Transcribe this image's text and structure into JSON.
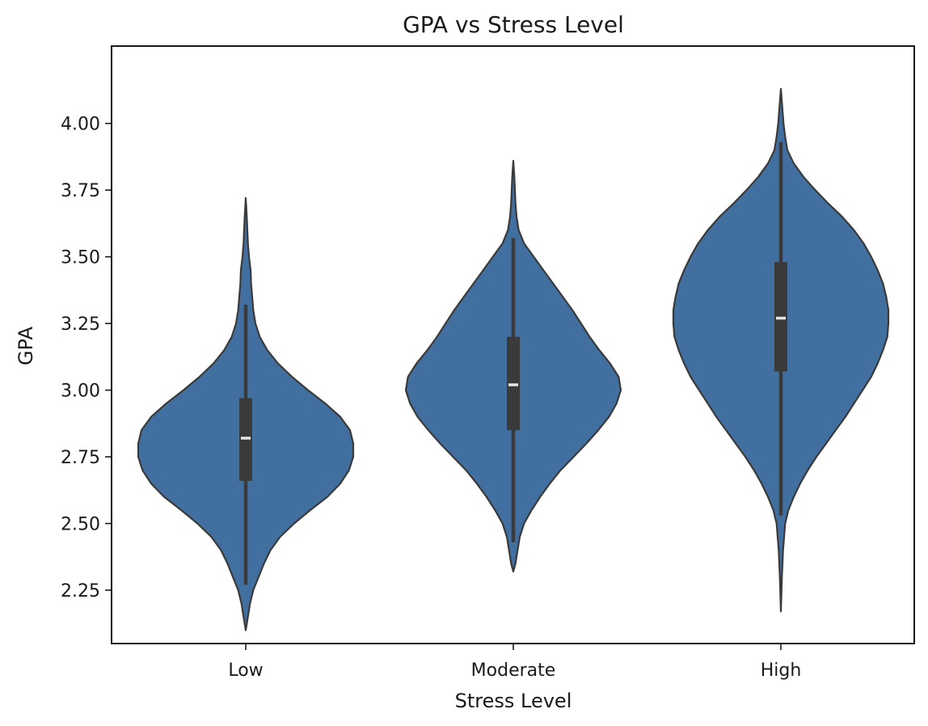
{
  "chart_data": {
    "type": "violin",
    "title": "GPA vs Stress Level",
    "xlabel": "Stress Level",
    "ylabel": "GPA",
    "categories": [
      "Low",
      "Moderate",
      "High"
    ],
    "ylim": [
      2.05,
      4.29
    ],
    "yticks": [
      2.25,
      2.5,
      2.75,
      3.0,
      3.25,
      3.5,
      3.75,
      4.0
    ],
    "ytick_labels": [
      "2.25",
      "2.50",
      "2.75",
      "3.00",
      "3.25",
      "3.50",
      "3.75",
      "4.00"
    ],
    "grid": false,
    "colors": {
      "fill": "#4170A0",
      "outline": "#3A3A3A",
      "box": "#3A3A3A",
      "median": "#E6E6E6"
    },
    "violins": [
      {
        "category": "Low",
        "min": 2.1,
        "max": 3.72,
        "whisker_low": 2.27,
        "whisker_high": 3.32,
        "q1": 2.66,
        "median": 2.82,
        "q3": 2.97,
        "density": [
          [
            2.1,
            0.0
          ],
          [
            2.15,
            0.02
          ],
          [
            2.2,
            0.04
          ],
          [
            2.25,
            0.07
          ],
          [
            2.3,
            0.12
          ],
          [
            2.35,
            0.17
          ],
          [
            2.4,
            0.23
          ],
          [
            2.45,
            0.32
          ],
          [
            2.5,
            0.45
          ],
          [
            2.55,
            0.6
          ],
          [
            2.6,
            0.76
          ],
          [
            2.65,
            0.88
          ],
          [
            2.7,
            0.96
          ],
          [
            2.75,
            1.0
          ],
          [
            2.8,
            1.0
          ],
          [
            2.85,
            0.97
          ],
          [
            2.9,
            0.88
          ],
          [
            2.95,
            0.74
          ],
          [
            3.0,
            0.58
          ],
          [
            3.05,
            0.43
          ],
          [
            3.1,
            0.3
          ],
          [
            3.15,
            0.2
          ],
          [
            3.2,
            0.13
          ],
          [
            3.25,
            0.09
          ],
          [
            3.3,
            0.07
          ],
          [
            3.35,
            0.06
          ],
          [
            3.4,
            0.05
          ],
          [
            3.45,
            0.045
          ],
          [
            3.5,
            0.03
          ],
          [
            3.55,
            0.02
          ],
          [
            3.6,
            0.015
          ],
          [
            3.65,
            0.01
          ],
          [
            3.72,
            0.0
          ]
        ]
      },
      {
        "category": "Moderate",
        "min": 2.32,
        "max": 3.86,
        "whisker_low": 2.43,
        "whisker_high": 3.57,
        "q1": 2.85,
        "median": 3.02,
        "q3": 3.2,
        "density": [
          [
            2.32,
            0.0
          ],
          [
            2.35,
            0.02
          ],
          [
            2.4,
            0.04
          ],
          [
            2.45,
            0.06
          ],
          [
            2.5,
            0.1
          ],
          [
            2.55,
            0.17
          ],
          [
            2.6,
            0.25
          ],
          [
            2.65,
            0.34
          ],
          [
            2.7,
            0.44
          ],
          [
            2.75,
            0.56
          ],
          [
            2.8,
            0.68
          ],
          [
            2.85,
            0.79
          ],
          [
            2.9,
            0.89
          ],
          [
            2.95,
            0.96
          ],
          [
            3.0,
            1.0
          ],
          [
            3.05,
            0.98
          ],
          [
            3.1,
            0.9
          ],
          [
            3.15,
            0.8
          ],
          [
            3.2,
            0.71
          ],
          [
            3.25,
            0.63
          ],
          [
            3.3,
            0.55
          ],
          [
            3.35,
            0.46
          ],
          [
            3.4,
            0.37
          ],
          [
            3.45,
            0.28
          ],
          [
            3.5,
            0.19
          ],
          [
            3.55,
            0.1
          ],
          [
            3.6,
            0.05
          ],
          [
            3.65,
            0.03
          ],
          [
            3.7,
            0.02
          ],
          [
            3.75,
            0.015
          ],
          [
            3.8,
            0.01
          ],
          [
            3.86,
            0.0
          ]
        ]
      },
      {
        "category": "High",
        "min": 2.17,
        "max": 4.13,
        "whisker_low": 2.53,
        "whisker_high": 3.93,
        "q1": 3.07,
        "median": 3.27,
        "q3": 3.48,
        "density": [
          [
            2.17,
            0.0
          ],
          [
            2.3,
            0.01
          ],
          [
            2.4,
            0.02
          ],
          [
            2.45,
            0.03
          ],
          [
            2.5,
            0.04
          ],
          [
            2.55,
            0.07
          ],
          [
            2.6,
            0.12
          ],
          [
            2.65,
            0.18
          ],
          [
            2.7,
            0.25
          ],
          [
            2.75,
            0.33
          ],
          [
            2.8,
            0.42
          ],
          [
            2.85,
            0.51
          ],
          [
            2.9,
            0.6
          ],
          [
            2.95,
            0.68
          ],
          [
            3.0,
            0.76
          ],
          [
            3.05,
            0.84
          ],
          [
            3.1,
            0.9
          ],
          [
            3.15,
            0.95
          ],
          [
            3.2,
            0.99
          ],
          [
            3.25,
            1.0
          ],
          [
            3.3,
            1.0
          ],
          [
            3.35,
            0.98
          ],
          [
            3.4,
            0.95
          ],
          [
            3.45,
            0.9
          ],
          [
            3.5,
            0.84
          ],
          [
            3.55,
            0.77
          ],
          [
            3.6,
            0.68
          ],
          [
            3.65,
            0.57
          ],
          [
            3.7,
            0.44
          ],
          [
            3.75,
            0.32
          ],
          [
            3.8,
            0.21
          ],
          [
            3.85,
            0.12
          ],
          [
            3.9,
            0.06
          ],
          [
            3.95,
            0.04
          ],
          [
            4.0,
            0.025
          ],
          [
            4.05,
            0.015
          ],
          [
            4.13,
            0.0
          ]
        ]
      }
    ]
  }
}
